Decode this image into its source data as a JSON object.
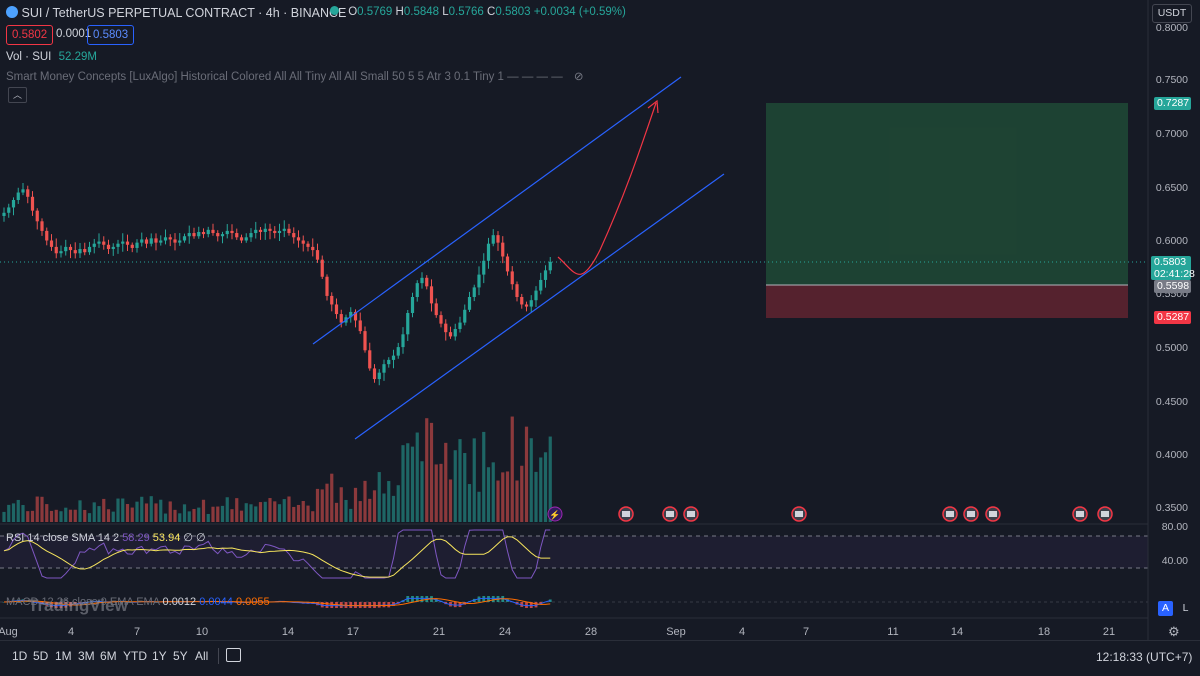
{
  "header": {
    "symbol_title": "SUI / TetherUS PERPETUAL CONTRACT · 4h · BINANCE",
    "o_label": "O",
    "o_value": "0.5769",
    "h_label": "H",
    "h_value": "0.5848",
    "l_label": "L",
    "l_value": "0.5766",
    "c_label": "C",
    "c_value": "0.5803",
    "change": "+0.0034 (+0.59%)",
    "bid": "0.5802",
    "spread": "0.0001",
    "ask": "0.5803",
    "currency": "USDT"
  },
  "indicators": {
    "volume_label": "Vol · SUI",
    "volume_value": "52.29M",
    "smc_label": "Smart Money Concepts [LuxAlgo] Historical Colored All All Tiny All All Small 50 5 5 Atr 3 0.1 Tiny 1 — — — —",
    "rsi_label": "RSI 14 close SMA 14 2",
    "rsi_value": "58.29",
    "rsi_sma": "53.94",
    "rsi_extra": "∅ ∅",
    "macd_label": "MACD 12 26 close 9 EMA EMA",
    "macd_v1": "0.0012",
    "macd_v2": "0.0044",
    "macd_v3": "0.0055",
    "watermark": "TradingView"
  },
  "price_axis": {
    "ticks": [
      "0.8000",
      "0.7500",
      "0.7000",
      "0.6500",
      "0.6000",
      "0.5500",
      "0.5000",
      "0.4500",
      "0.4000",
      "0.3500"
    ],
    "tag_target": "0.7287",
    "tag_price": "0.5803",
    "tag_countdown": "02:41:28",
    "tag_entry": "0.5598",
    "tag_stop": "0.5287",
    "rsi_ticks": [
      "80.00",
      "40.00"
    ]
  },
  "time_axis": {
    "labels": [
      "Aug",
      "4",
      "7",
      "10",
      "14",
      "17",
      "21",
      "24",
      "28",
      "Sep",
      "4",
      "7",
      "11",
      "14",
      "18",
      "21"
    ]
  },
  "toolbar": {
    "timeframes": [
      "1D",
      "5D",
      "1M",
      "3M",
      "6M",
      "YTD",
      "1Y",
      "5Y",
      "All"
    ],
    "clock": "12:18:33 (UTC+7)",
    "auto_label": "A",
    "log_label": "L"
  },
  "colors": {
    "up": "#26a69a",
    "down": "#ef5350",
    "channel": "#2962ff",
    "arrow": "#f23645",
    "bg": "#161a25"
  },
  "chart_data": {
    "type": "candlestick",
    "title": "SUI / TetherUS PERPETUAL CONTRACT · 4h · BINANCE",
    "ylim": [
      0.33,
      0.82
    ],
    "channel": {
      "upper": [
        {
          "x": "Aug 14",
          "y": 0.515
        },
        {
          "x": "Aug 28",
          "y": 0.75
        }
      ],
      "lower": [
        {
          "x": "Aug 17",
          "y": 0.42
        },
        {
          "x": "Sep 2",
          "y": 0.664
        }
      ]
    },
    "projection_target": 0.735,
    "position": {
      "target": 0.7287,
      "entry": 0.5598,
      "stop": 0.5287
    },
    "last_price": 0.5803,
    "closes": [
      0.626,
      0.631,
      0.638,
      0.645,
      0.648,
      0.641,
      0.628,
      0.618,
      0.609,
      0.6,
      0.594,
      0.588,
      0.59,
      0.594,
      0.591,
      0.588,
      0.592,
      0.589,
      0.594,
      0.597,
      0.599,
      0.596,
      0.592,
      0.594,
      0.597,
      0.599,
      0.596,
      0.593,
      0.598,
      0.601,
      0.597,
      0.602,
      0.598,
      0.6,
      0.603,
      0.601,
      0.598,
      0.6,
      0.604,
      0.607,
      0.604,
      0.608,
      0.606,
      0.61,
      0.607,
      0.604,
      0.606,
      0.609,
      0.607,
      0.603,
      0.6,
      0.603,
      0.607,
      0.61,
      0.608,
      0.611,
      0.609,
      0.607,
      0.609,
      0.611,
      0.607,
      0.603,
      0.6,
      0.597,
      0.594,
      0.591,
      0.582,
      0.566,
      0.548,
      0.54,
      0.531,
      0.523,
      0.528,
      0.533,
      0.525,
      0.515,
      0.497,
      0.48,
      0.47,
      0.476,
      0.484,
      0.488,
      0.492,
      0.5,
      0.512,
      0.532,
      0.547,
      0.56,
      0.565,
      0.557,
      0.541,
      0.53,
      0.522,
      0.514,
      0.51,
      0.517,
      0.523,
      0.535,
      0.547,
      0.556,
      0.568,
      0.581,
      0.597,
      0.605,
      0.598,
      0.585,
      0.571,
      0.559,
      0.547,
      0.54,
      0.538,
      0.544,
      0.553,
      0.563,
      0.572,
      0.58
    ]
  }
}
